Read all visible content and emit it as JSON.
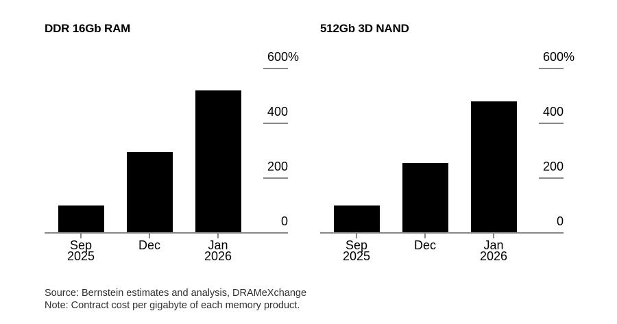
{
  "chart_data": [
    {
      "type": "bar",
      "title": "DDR 16Gb RAM",
      "categories": [
        "Sep 2025",
        "Dec",
        "Jan 2026"
      ],
      "category_label_lines": [
        [
          "Sep",
          "2025"
        ],
        [
          "Dec"
        ],
        [
          "Jan",
          "2026"
        ]
      ],
      "values": [
        100,
        295,
        520
      ],
      "unit": "%",
      "xlabel": "",
      "ylabel": "",
      "ylim": [
        0,
        600
      ],
      "yticks": [
        {
          "value": 600,
          "label": "600%"
        },
        {
          "value": 400,
          "label": "400"
        },
        {
          "value": 200,
          "label": "200"
        },
        {
          "value": 0,
          "label": "0"
        }
      ],
      "ytick_side": "right",
      "grid": "off",
      "legend": "none",
      "bar_color": "#000000",
      "axis_color": "#878787"
    },
    {
      "type": "bar",
      "title": "512Gb 3D NAND",
      "categories": [
        "Sep 2025",
        "Dec",
        "Jan 2026"
      ],
      "category_label_lines": [
        [
          "Sep",
          "2025"
        ],
        [
          "Dec"
        ],
        [
          "Jan",
          "2026"
        ]
      ],
      "values": [
        100,
        255,
        480
      ],
      "unit": "%",
      "xlabel": "",
      "ylabel": "",
      "ylim": [
        0,
        600
      ],
      "yticks": [
        {
          "value": 600,
          "label": "600%"
        },
        {
          "value": 400,
          "label": "400"
        },
        {
          "value": 200,
          "label": "200"
        },
        {
          "value": 0,
          "label": "0"
        }
      ],
      "ytick_side": "right",
      "grid": "off",
      "legend": "none",
      "bar_color": "#000000",
      "axis_color": "#878787"
    }
  ],
  "footer": {
    "source": "Source: Bernstein estimates and analysis, DRAMeXchange",
    "note": "Note: Contract cost per gigabyte of each memory product."
  },
  "colors": {
    "background": "#ffffff",
    "bar": "#000000",
    "axis": "#878787",
    "text": "#000000",
    "footer_text": "#2e2e2e"
  }
}
